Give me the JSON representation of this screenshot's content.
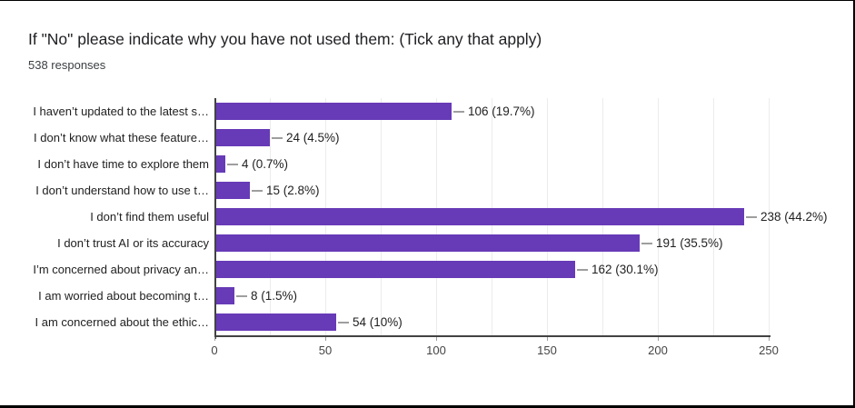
{
  "title": "If \"No\" please indicate why you have not used them: (Tick any that apply)",
  "subtitle": "538 responses",
  "chart_data": {
    "type": "bar",
    "orientation": "horizontal",
    "title": "If \"No\" please indicate why you have not used them: (Tick any that apply)",
    "subtitle": "538 responses",
    "categories": [
      "I haven’t updated to the latest s…",
      "I don’t know what these feature…",
      "I don’t have time to explore them",
      "I don’t understand how to use t…",
      "I don’t find them useful",
      "I don’t trust AI or its accuracy",
      "I’m concerned about privacy an…",
      "I am worried about becoming t…",
      "I am concerned about the ethic…"
    ],
    "values": [
      106,
      24,
      4,
      15,
      238,
      191,
      162,
      8,
      54
    ],
    "value_labels": [
      "106 (19.7%)",
      "24 (4.5%)",
      "4 (0.7%)",
      "15 (2.8%)",
      "238 (44.2%)",
      "191 (35.5%)",
      "162 (30.1%)",
      "8 (1.5%)",
      "54 (10%)"
    ],
    "xlabel": "",
    "ylabel": "",
    "xlim": [
      0,
      250
    ],
    "x_ticks": [
      0,
      50,
      100,
      150,
      200,
      250
    ],
    "grid": "on",
    "minor_grid_step": 25,
    "legend": "none"
  },
  "colors": {
    "bar": "#673ab7",
    "axis": "#424242",
    "grid": "#ececec",
    "connector": "#9e9e9e",
    "title_text": "#202124",
    "subtitle_text": "#3c4043",
    "category_text": "#212121",
    "value_text": "#212121",
    "tick_text": "#444444",
    "border": "#000000",
    "background": "#ffffff"
  }
}
